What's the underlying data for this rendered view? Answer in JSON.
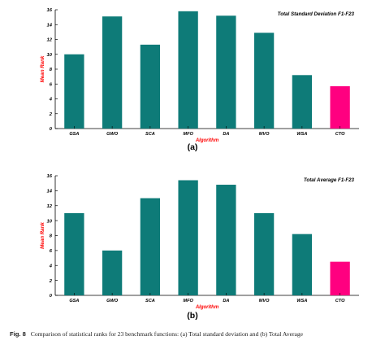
{
  "colors": {
    "bar": "#0e7b78",
    "highlight": "#ff0080",
    "ylabel": "#ff0000",
    "xlabel": "#ff0000",
    "axis": "#000000"
  },
  "chart_data": [
    {
      "type": "bar",
      "title": "Total Standard Deviation F1-F23",
      "xlabel": "Algorithm",
      "ylabel": "Mean Rank",
      "ylim": [
        0,
        16
      ],
      "yticks": [
        0,
        2,
        4,
        6,
        8,
        10,
        12,
        14,
        16
      ],
      "categories": [
        "GSA",
        "GWO",
        "SCA",
        "MFO",
        "DA",
        "MVO",
        "WSA",
        "CTO"
      ],
      "values": [
        10.0,
        15.1,
        11.3,
        15.8,
        15.2,
        12.9,
        7.2,
        5.7
      ],
      "highlight": "CTO",
      "grid": false,
      "panel_label": "(a)"
    },
    {
      "type": "bar",
      "title": "Total Average F1-F23",
      "xlabel": "Algorithm",
      "ylabel": "Mean Rank",
      "ylim": [
        0,
        16
      ],
      "yticks": [
        0,
        2,
        4,
        6,
        8,
        10,
        12,
        14,
        16
      ],
      "categories": [
        "GSA",
        "GWO",
        "SCA",
        "MFO",
        "DA",
        "MVO",
        "WSA",
        "CTO"
      ],
      "values": [
        11.0,
        6.0,
        13.0,
        15.4,
        14.8,
        11.0,
        8.2,
        4.5
      ],
      "highlight": "CTO",
      "grid": false,
      "panel_label": "(b)"
    }
  ],
  "caption": {
    "fig_label": "Fig. 8",
    "text": "Comparison of statistical ranks for 23 benchmark functions: (a) Total standard deviation and (b) Total Average"
  }
}
